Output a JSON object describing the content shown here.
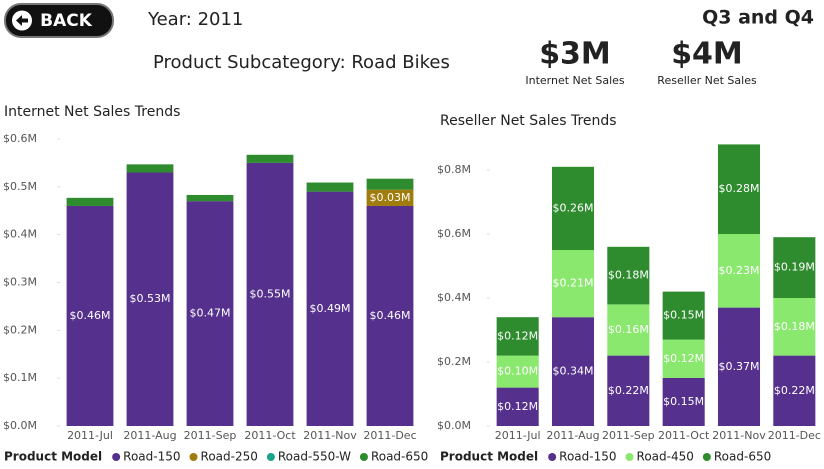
{
  "header": {
    "back_button": "BACK",
    "year": "Year: 2011",
    "subcategory": "Product Subcategory: Road Bikes",
    "period": "Q3 and Q4"
  },
  "kpis": [
    {
      "value": "$3M",
      "label": "Internet Net Sales"
    },
    {
      "value": "$4M",
      "label": "Reseller Net Sales"
    }
  ],
  "chart_data": [
    {
      "type": "bar",
      "stacked": true,
      "title": "Internet Net Sales Trends",
      "legend_title": "Product Model",
      "categories": [
        "2011-Jul",
        "2011-Aug",
        "2011-Sep",
        "2011-Oct",
        "2011-Nov",
        "2011-Dec"
      ],
      "ylim": [
        0,
        0.6
      ],
      "yticks": [
        {
          "value": 0,
          "label": "$0.0M"
        },
        {
          "value": 0.1,
          "label": "$0.1M"
        },
        {
          "value": 0.2,
          "label": "$0.2M"
        },
        {
          "value": 0.3,
          "label": "$0.3M"
        },
        {
          "value": 0.4,
          "label": "$0.4M"
        },
        {
          "value": 0.5,
          "label": "$0.5M"
        },
        {
          "value": 0.6,
          "label": "$0.6M"
        }
      ],
      "series": [
        {
          "name": "Road-150",
          "color": "#55308d",
          "values": [
            0.46,
            0.53,
            0.47,
            0.55,
            0.49,
            0.46
          ],
          "value_labels": [
            "$0.46M",
            "$0.53M",
            "$0.47M",
            "$0.55M",
            "$0.49M",
            "$0.46M"
          ]
        },
        {
          "name": "Road-250",
          "color": "#a07c0c",
          "values": [
            null,
            null,
            null,
            null,
            null,
            0.034
          ],
          "value_labels": [
            null,
            null,
            null,
            null,
            null,
            "$0.03M"
          ]
        },
        {
          "name": "Road-550-W",
          "color": "#1aa38a",
          "values": [
            null,
            null,
            null,
            null,
            null,
            null
          ]
        },
        {
          "name": "Road-650",
          "color": "#2e8b2e",
          "values": [
            0.017,
            0.017,
            0.013,
            0.017,
            0.019,
            0.023
          ]
        }
      ]
    },
    {
      "type": "bar",
      "stacked": true,
      "title": "Reseller Net Sales Trends",
      "legend_title": "Product Model",
      "categories": [
        "2011-Jul",
        "2011-Aug",
        "2011-Sep",
        "2011-Oct",
        "2011-Nov",
        "2011-Dec"
      ],
      "ylim": [
        0,
        0.9
      ],
      "yticks": [
        {
          "value": 0,
          "label": "$0.0M"
        },
        {
          "value": 0.2,
          "label": "$0.2M"
        },
        {
          "value": 0.4,
          "label": "$0.4M"
        },
        {
          "value": 0.6,
          "label": "$0.6M"
        },
        {
          "value": 0.8,
          "label": "$0.8M"
        }
      ],
      "series": [
        {
          "name": "Road-150",
          "color": "#55308d",
          "values": [
            0.12,
            0.34,
            0.22,
            0.15,
            0.37,
            0.22
          ],
          "value_labels": [
            "$0.12M",
            "$0.34M",
            "$0.22M",
            "$0.15M",
            "$0.37M",
            "$0.22M"
          ]
        },
        {
          "name": "Road-450",
          "color": "#8ae86e",
          "values": [
            0.1,
            0.21,
            0.16,
            0.12,
            0.23,
            0.18
          ],
          "value_labels": [
            "$0.10M",
            "$0.21M",
            "$0.16M",
            "$0.12M",
            "$0.23M",
            "$0.18M"
          ]
        },
        {
          "name": "Road-650",
          "color": "#2e8b2e",
          "values": [
            0.12,
            0.26,
            0.18,
            0.15,
            0.28,
            0.19
          ],
          "value_labels": [
            "$0.12M",
            "$0.26M",
            "$0.18M",
            "$0.15M",
            "$0.28M",
            "$0.19M"
          ]
        }
      ]
    }
  ]
}
